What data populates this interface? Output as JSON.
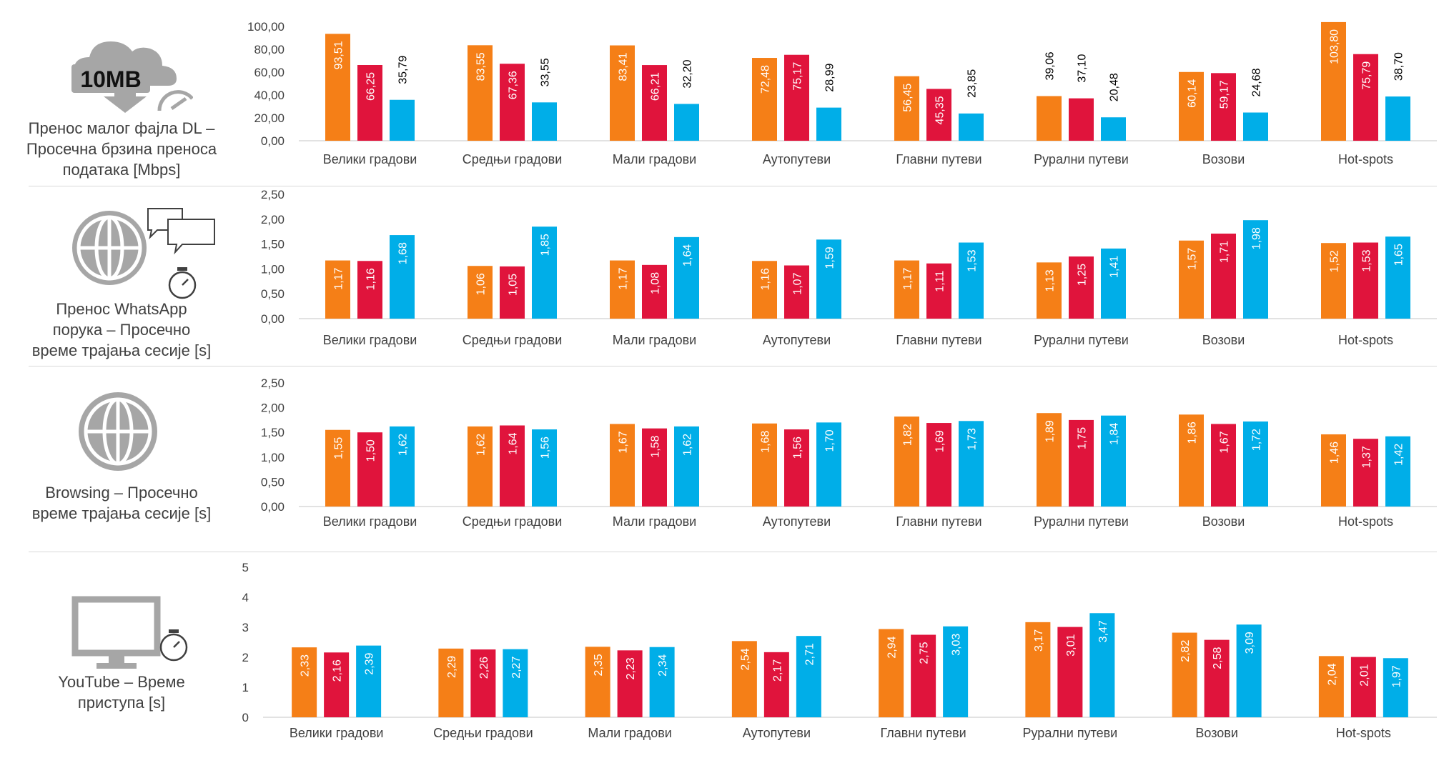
{
  "colors": {
    "orange": "#f57f17",
    "red": "#e0143c",
    "blue": "#00aee8",
    "axis": "#d9d9d9",
    "text": "#404040"
  },
  "categories": [
    "Велики градови",
    "Средњи градови",
    "Мали градови",
    "Аутопутеви",
    "Главни путеви",
    "Рурални путеви",
    "Возови",
    "Hot-spots"
  ],
  "panels": [
    {
      "title_lines": [
        "Пренос малог фајла DL –",
        "Просечна брзина преноса",
        "података [Mbps]"
      ],
      "icon": "cloud-download-speedometer-icon",
      "icon_label": "10MB"
    },
    {
      "title_lines": [
        "Пренос WhatsApp",
        "порука – Просечно",
        "време трајања сесије [s]"
      ],
      "icon": "globe-chat-stopwatch-icon"
    },
    {
      "title_lines": [
        "Browsing – Просечно",
        "време трајања сесије [s]"
      ],
      "icon": "globe-icon"
    },
    {
      "title_lines": [
        "YouTube – Време",
        "приступа [s]"
      ],
      "icon": "monitor-stopwatch-icon"
    }
  ],
  "chart_data": [
    {
      "type": "bar",
      "title": "Пренос малог фајла DL – Просечна брзина преноса података [Mbps]",
      "categories": [
        "Велики градови",
        "Средњи градови",
        "Мали градови",
        "Аутопутеви",
        "Главни путеви",
        "Рурални путеви",
        "Возови",
        "Hot-spots"
      ],
      "ylim": [
        0,
        100
      ],
      "yticks": [
        "0,00",
        "20,00",
        "40,00",
        "60,00",
        "80,00",
        "100,00"
      ],
      "series": [
        {
          "name": "series-1",
          "color": "#f57f17",
          "values": [
            93.51,
            83.55,
            83.41,
            72.48,
            56.45,
            39.06,
            60.14,
            103.8
          ],
          "labels": [
            "93,51",
            "83,55",
            "83,41",
            "72,48",
            "56,45",
            "39,06",
            "60,14",
            "103,80"
          ]
        },
        {
          "name": "series-2",
          "color": "#e0143c",
          "values": [
            66.25,
            67.36,
            66.21,
            75.17,
            45.35,
            37.1,
            59.17,
            75.79
          ],
          "labels": [
            "66,25",
            "67,36",
            "66,21",
            "75,17",
            "45,35",
            "37,10",
            "59,17",
            "75,79"
          ]
        },
        {
          "name": "series-3",
          "color": "#00aee8",
          "values": [
            35.79,
            33.55,
            32.2,
            28.99,
            23.85,
            20.48,
            24.68,
            38.7
          ],
          "labels": [
            "35,79",
            "33,55",
            "32,20",
            "28,99",
            "23,85",
            "20,48",
            "24,68",
            "38,70"
          ]
        }
      ]
    },
    {
      "type": "bar",
      "title": "Пренос WhatsApp порука – Просечно време трајања сесије [s]",
      "categories": [
        "Велики градови",
        "Средњи градови",
        "Мали градови",
        "Аутопутеви",
        "Главни путеви",
        "Рурални путеви",
        "Возови",
        "Hot-spots"
      ],
      "ylim": [
        0,
        2.5
      ],
      "yticks": [
        "0,00",
        "0,50",
        "1,00",
        "1,50",
        "2,00",
        "2,50"
      ],
      "series": [
        {
          "name": "series-1",
          "color": "#f57f17",
          "values": [
            1.17,
            1.06,
            1.17,
            1.16,
            1.17,
            1.13,
            1.57,
            1.52
          ],
          "labels": [
            "1,17",
            "1,06",
            "1,17",
            "1,16",
            "1,17",
            "1,13",
            "1,57",
            "1,52"
          ]
        },
        {
          "name": "series-2",
          "color": "#e0143c",
          "values": [
            1.16,
            1.05,
            1.08,
            1.07,
            1.11,
            1.25,
            1.71,
            1.53
          ],
          "labels": [
            "1,16",
            "1,05",
            "1,08",
            "1,07",
            "1,11",
            "1,25",
            "1,71",
            "1,53"
          ]
        },
        {
          "name": "series-3",
          "color": "#00aee8",
          "values": [
            1.68,
            1.85,
            1.64,
            1.59,
            1.53,
            1.41,
            1.98,
            1.65
          ],
          "labels": [
            "1,68",
            "1,85",
            "1,64",
            "1,59",
            "1,53",
            "1,41",
            "1,98",
            "1,65"
          ]
        }
      ]
    },
    {
      "type": "bar",
      "title": "Browsing – Просечно време трајања сесије [s]",
      "categories": [
        "Велики градови",
        "Средњи градови",
        "Мали градови",
        "Аутопутеви",
        "Главни путеви",
        "Рурални путеви",
        "Возови",
        "Hot-spots"
      ],
      "ylim": [
        0,
        2.5
      ],
      "yticks": [
        "0,00",
        "0,50",
        "1,00",
        "1,50",
        "2,00",
        "2,50"
      ],
      "series": [
        {
          "name": "series-1",
          "color": "#f57f17",
          "values": [
            1.55,
            1.62,
            1.67,
            1.68,
            1.82,
            1.89,
            1.86,
            1.46
          ],
          "labels": [
            "1,55",
            "1,62",
            "1,67",
            "1,68",
            "1,82",
            "1,89",
            "1,86",
            "1,46"
          ]
        },
        {
          "name": "series-2",
          "color": "#e0143c",
          "values": [
            1.5,
            1.64,
            1.58,
            1.56,
            1.69,
            1.75,
            1.67,
            1.37
          ],
          "labels": [
            "1,50",
            "1,64",
            "1,58",
            "1,56",
            "1,69",
            "1,75",
            "1,67",
            "1,37"
          ]
        },
        {
          "name": "series-3",
          "color": "#00aee8",
          "values": [
            1.62,
            1.56,
            1.62,
            1.7,
            1.73,
            1.84,
            1.72,
            1.42
          ],
          "labels": [
            "1,62",
            "1,56",
            "1,62",
            "1,70",
            "1,73",
            "1,84",
            "1,72",
            "1,42"
          ]
        }
      ]
    },
    {
      "type": "bar",
      "title": "YouTube – Време приступа [s]",
      "categories": [
        "Велики градови",
        "Средњи градови",
        "Мали градови",
        "Аутопутеви",
        "Главни путеви",
        "Рурални путеви",
        "Возови",
        "Hot-spots"
      ],
      "ylim": [
        0,
        5
      ],
      "yticks": [
        "0",
        "1",
        "2",
        "3",
        "4",
        "5"
      ],
      "series": [
        {
          "name": "series-1",
          "color": "#f57f17",
          "values": [
            2.33,
            2.29,
            2.35,
            2.54,
            2.94,
            3.17,
            2.82,
            2.04
          ],
          "labels": [
            "2,33",
            "2,29",
            "2,35",
            "2,54",
            "2,94",
            "3,17",
            "2,82",
            "2,04"
          ]
        },
        {
          "name": "series-2",
          "color": "#e0143c",
          "values": [
            2.16,
            2.26,
            2.23,
            2.17,
            2.75,
            3.01,
            2.58,
            2.01
          ],
          "labels": [
            "2,16",
            "2,26",
            "2,23",
            "2,17",
            "2,75",
            "3,01",
            "2,58",
            "2,01"
          ]
        },
        {
          "name": "series-3",
          "color": "#00aee8",
          "values": [
            2.39,
            2.27,
            2.34,
            2.71,
            3.03,
            3.47,
            3.09,
            1.97
          ],
          "labels": [
            "2,39",
            "2,27",
            "2,34",
            "2,71",
            "3,03",
            "3,47",
            "3,09",
            "1,97"
          ]
        }
      ]
    }
  ]
}
